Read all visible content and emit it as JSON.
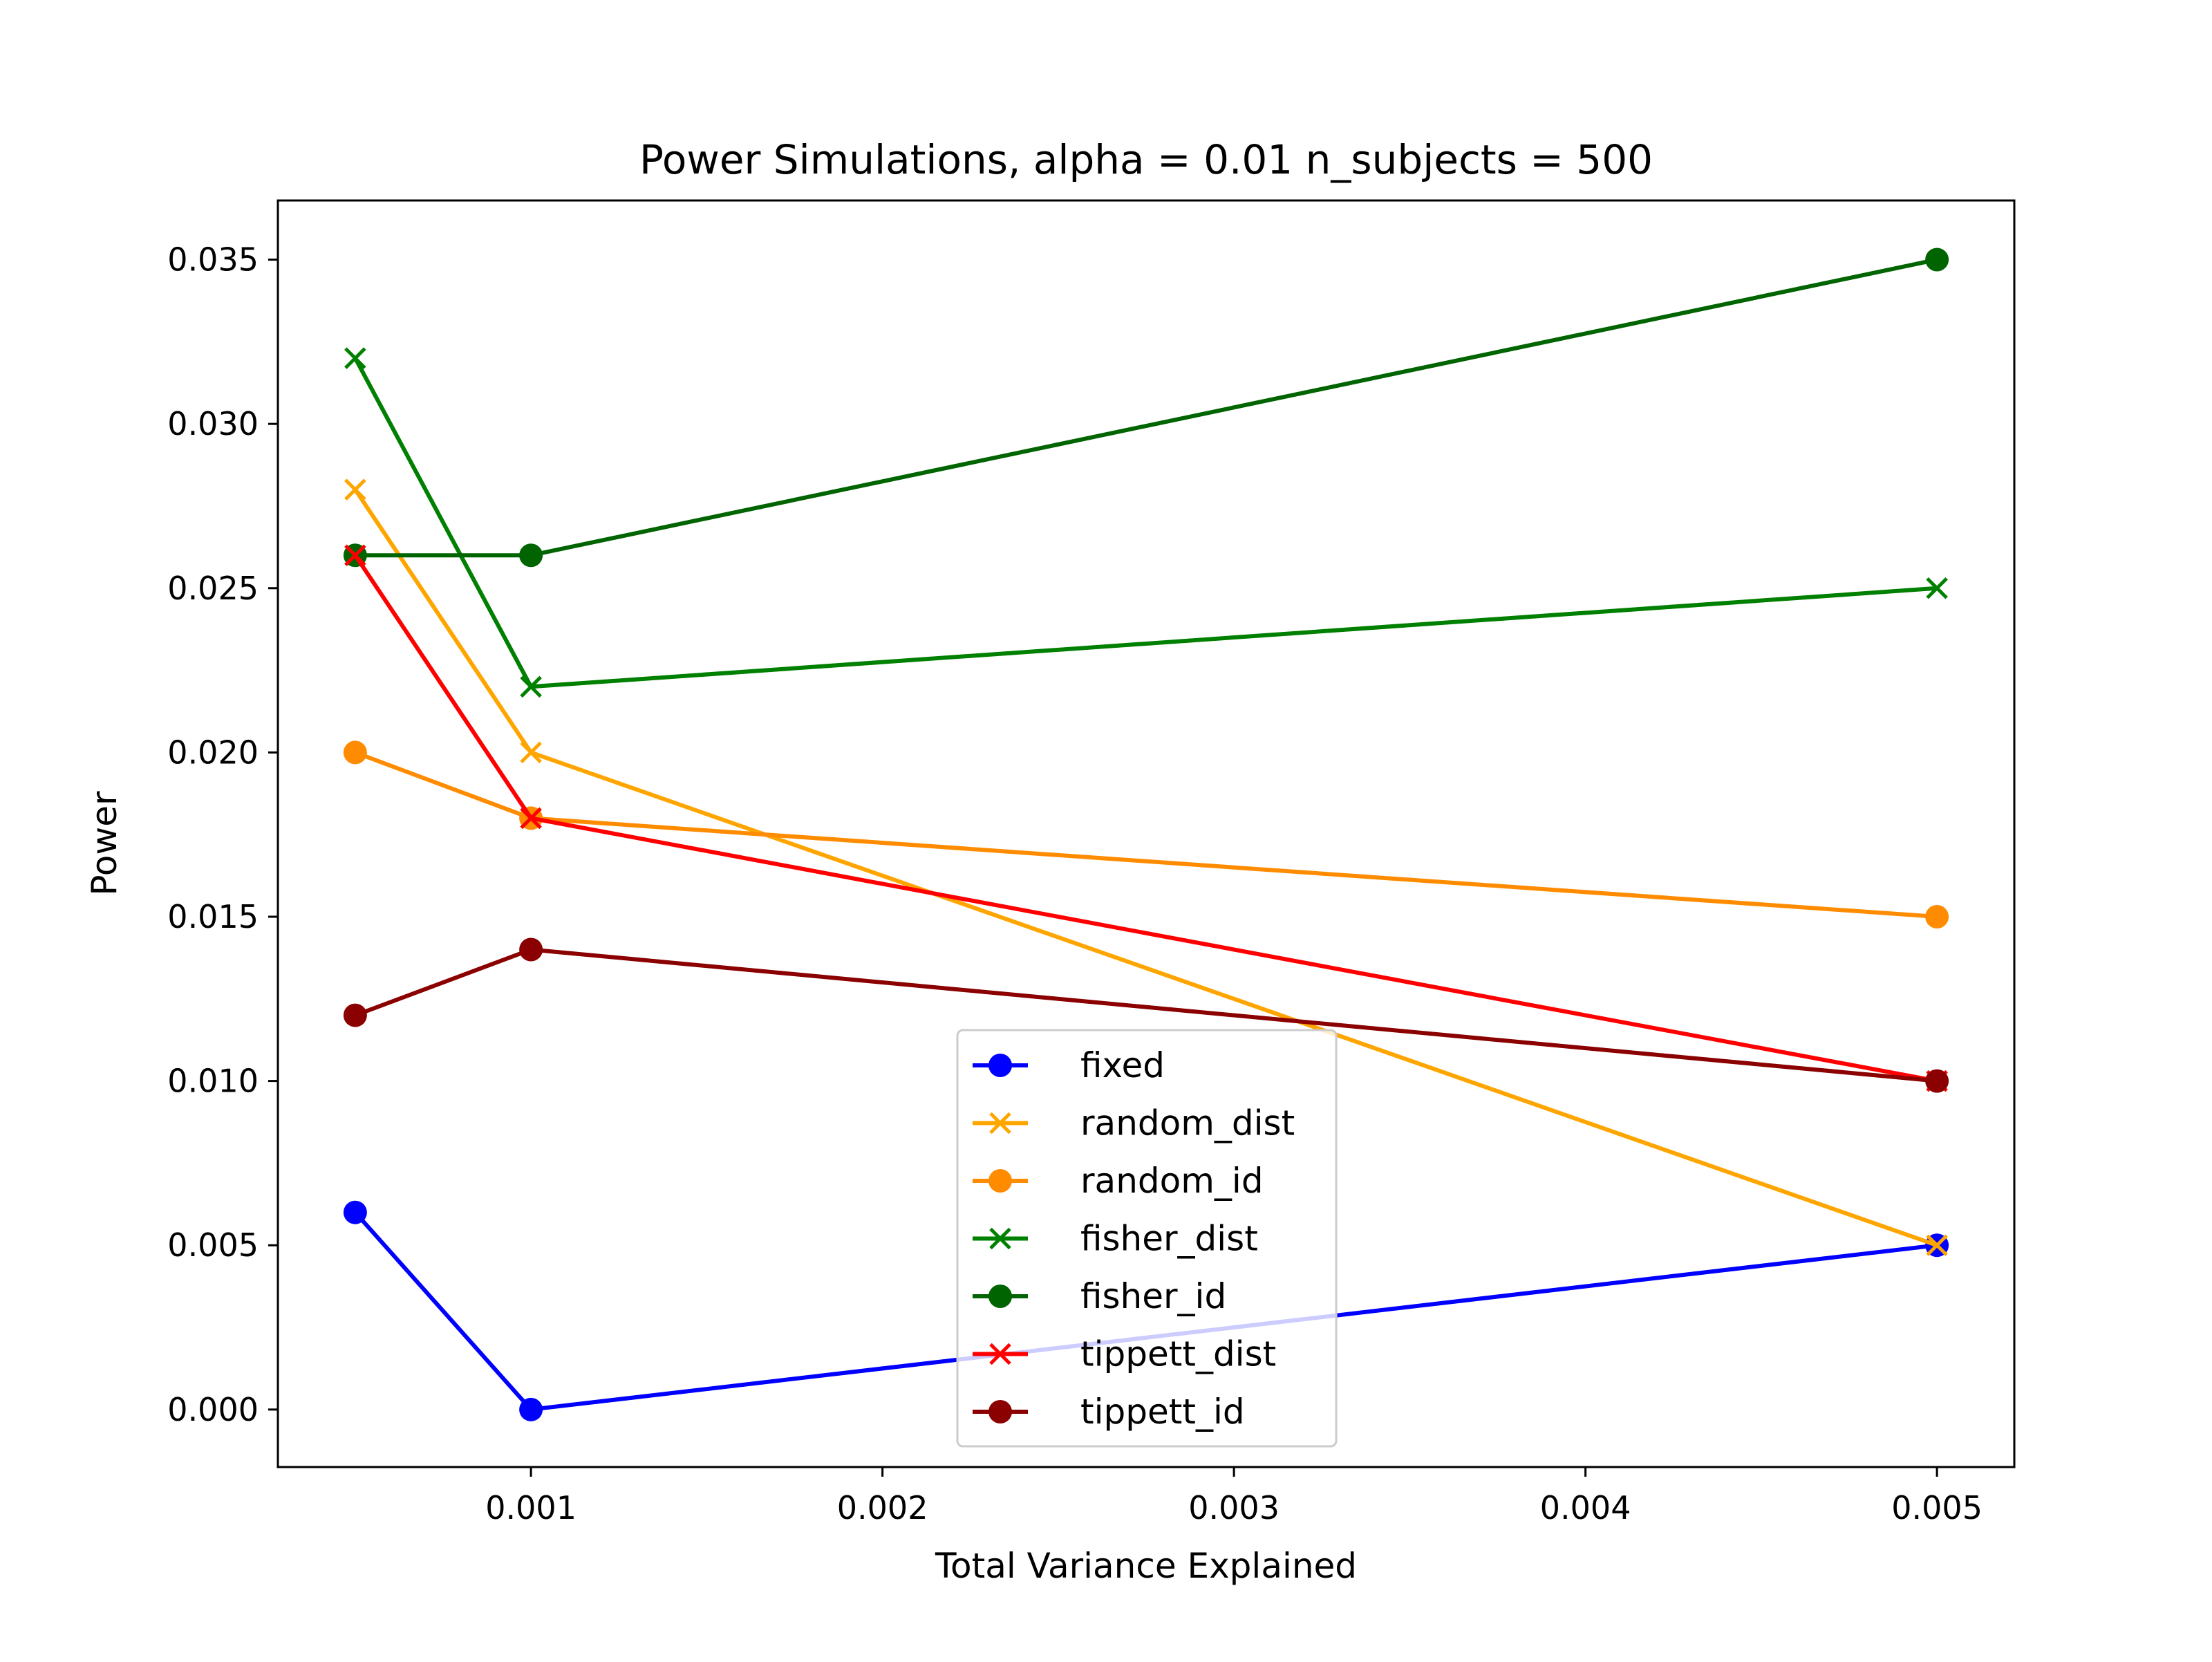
{
  "chart_data": {
    "type": "line",
    "title": "Power Simulations, alpha = 0.01 n_subjects = 500",
    "xlabel": "Total Variance Explained",
    "ylabel": "Power",
    "xlim": [
      0.00028,
      0.00522
    ],
    "ylim": [
      -0.00175,
      0.0368
    ],
    "x_ticks": [
      0.001,
      0.002,
      0.003,
      0.004,
      0.005
    ],
    "x_tick_labels": [
      "0.001",
      "0.002",
      "0.003",
      "0.004",
      "0.005"
    ],
    "y_ticks": [
      0.0,
      0.005,
      0.01,
      0.015,
      0.02,
      0.025,
      0.03,
      0.035
    ],
    "y_tick_labels": [
      "0.000",
      "0.005",
      "0.010",
      "0.015",
      "0.020",
      "0.025",
      "0.030",
      "0.035"
    ],
    "grid": false,
    "legend_position": "lower-center",
    "x": [
      0.0005,
      0.001,
      0.005
    ],
    "series": [
      {
        "name": "fixed",
        "color": "#0000ff",
        "marker": "circle",
        "values": [
          0.006,
          0.0,
          0.005
        ]
      },
      {
        "name": "random_dist",
        "color": "#ffa500",
        "marker": "x",
        "values": [
          0.028,
          0.02,
          0.005
        ]
      },
      {
        "name": "random_id",
        "color": "#ff8c00",
        "marker": "circle",
        "values": [
          0.02,
          0.018,
          0.015
        ]
      },
      {
        "name": "fisher_dist",
        "color": "#008000",
        "marker": "x",
        "values": [
          0.032,
          0.022,
          0.025
        ]
      },
      {
        "name": "fisher_id",
        "color": "#006400",
        "marker": "circle",
        "values": [
          0.026,
          0.026,
          0.035
        ]
      },
      {
        "name": "tippett_dist",
        "color": "#ff0000",
        "marker": "x",
        "values": [
          0.026,
          0.018,
          0.01
        ]
      },
      {
        "name": "tippett_id",
        "color": "#8b0000",
        "marker": "circle",
        "values": [
          0.012,
          0.014,
          0.01
        ]
      }
    ]
  }
}
